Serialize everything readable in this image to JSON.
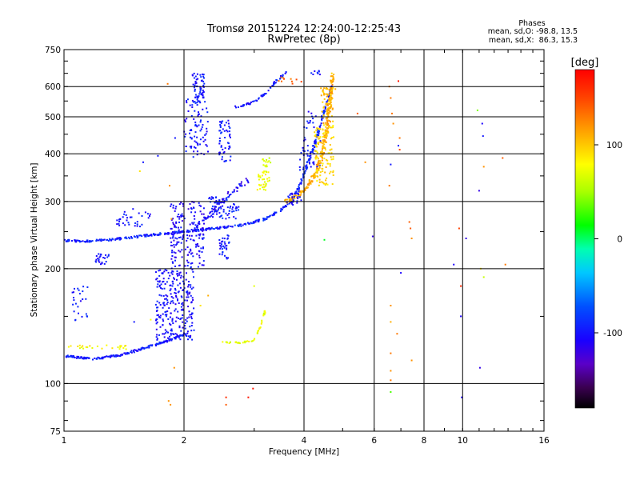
{
  "chart_data": {
    "type": "scatter",
    "title": "Tromsø 20151224 12:24:00-12:25:43",
    "subtitle": "RwPretec (8p)",
    "xlabel": "Frequency [MHz]",
    "ylabel": "Stationary phase Virtual Height [km]",
    "x_scale": "log",
    "y_scale": "log",
    "xlim": [
      1,
      16
    ],
    "ylim": [
      75,
      750
    ],
    "x_ticks": [
      1,
      2,
      4,
      6,
      8,
      10,
      16
    ],
    "x_tick_labels": [
      "1",
      "2",
      "4",
      "6",
      "8",
      "10",
      "16"
    ],
    "y_ticks": [
      75,
      100,
      200,
      300,
      400,
      500,
      600,
      750
    ],
    "y_tick_labels": [
      "75",
      "100",
      "200",
      "300",
      "400",
      "500",
      "600",
      "750"
    ],
    "grid": true,
    "phases_box": {
      "title": "Phases",
      "line_o": "mean, sd,O: -98.8, 13.5",
      "line_x": "mean, sd,X:  86.3, 15.3"
    },
    "colorbar": {
      "label": "[deg]",
      "range": [
        -180,
        180
      ],
      "ticks": [
        100,
        0,
        -100
      ],
      "tick_labels": [
        "100",
        "0",
        "-100"
      ]
    },
    "traces": [
      {
        "kind": "curve",
        "phase": -100,
        "spread": 0.012,
        "density": 12,
        "points": [
          [
            1.0,
            118
          ],
          [
            1.2,
            116
          ],
          [
            1.4,
            119
          ],
          [
            1.6,
            124
          ],
          [
            1.8,
            129
          ],
          [
            2.0,
            134
          ]
        ]
      },
      {
        "kind": "curve",
        "phase": -95,
        "spread": 0.012,
        "density": 10,
        "points": [
          [
            1.0,
            237
          ],
          [
            1.15,
            236
          ],
          [
            1.3,
            238
          ],
          [
            1.5,
            242
          ],
          [
            1.7,
            246
          ],
          [
            2.0,
            250
          ],
          [
            2.4,
            255
          ],
          [
            2.8,
            260
          ],
          [
            3.2,
            270
          ],
          [
            3.5,
            285
          ],
          [
            3.7,
            300
          ],
          [
            3.9,
            330
          ],
          [
            4.1,
            380
          ],
          [
            4.3,
            440
          ],
          [
            4.5,
            520
          ],
          [
            4.7,
            600
          ]
        ]
      },
      {
        "kind": "curve",
        "phase": -110,
        "spread": 0.03,
        "density": 7,
        "points": [
          [
            2.1,
            250
          ],
          [
            2.3,
            275
          ],
          [
            2.5,
            300
          ],
          [
            2.7,
            325
          ],
          [
            2.9,
            340
          ]
        ]
      },
      {
        "kind": "curve",
        "phase": -100,
        "spread": 0.012,
        "density": 8,
        "points": [
          [
            2.7,
            530
          ],
          [
            2.9,
            540
          ],
          [
            3.1,
            560
          ],
          [
            3.3,
            595
          ],
          [
            3.45,
            630
          ],
          [
            3.6,
            655
          ]
        ]
      },
      {
        "kind": "curve",
        "phase": 110,
        "spread": 0.02,
        "density": 14,
        "points": [
          [
            3.6,
            300
          ],
          [
            3.85,
            310
          ],
          [
            4.1,
            330
          ],
          [
            4.3,
            360
          ],
          [
            4.45,
            400
          ],
          [
            4.55,
            450
          ],
          [
            4.62,
            520
          ],
          [
            4.68,
            580
          ],
          [
            4.72,
            650
          ]
        ]
      },
      {
        "kind": "curve",
        "phase": 75,
        "spread": 0.008,
        "density": 6,
        "points": [
          [
            2.5,
            128
          ],
          [
            2.8,
            128
          ],
          [
            3.0,
            130
          ],
          [
            3.1,
            140
          ],
          [
            3.2,
            155
          ]
        ]
      },
      {
        "kind": "cloud",
        "phase": -105,
        "count": 260,
        "x": [
          1.7,
          2.12
        ],
        "y": [
          130,
          200
        ]
      },
      {
        "kind": "cloud",
        "phase": -108,
        "count": 180,
        "x": [
          1.85,
          2.25
        ],
        "y": [
          200,
          300
        ]
      },
      {
        "kind": "cloud",
        "phase": -102,
        "count": 90,
        "x": [
          2.0,
          2.3
        ],
        "y": [
          390,
          560
        ]
      },
      {
        "kind": "cloud",
        "phase": -100,
        "count": 55,
        "x": [
          2.45,
          2.62
        ],
        "y": [
          380,
          490
        ]
      },
      {
        "kind": "cloud",
        "phase": -100,
        "count": 60,
        "x": [
          2.1,
          2.25
        ],
        "y": [
          560,
          650
        ]
      },
      {
        "kind": "cloud",
        "phase": -98,
        "count": 70,
        "x": [
          2.3,
          2.75
        ],
        "y": [
          270,
          310
        ]
      },
      {
        "kind": "cloud",
        "phase": -100,
        "count": 35,
        "x": [
          2.44,
          2.6
        ],
        "y": [
          210,
          245
        ]
      },
      {
        "kind": "cloud",
        "phase": -100,
        "count": 35,
        "x": [
          1.35,
          1.65
        ],
        "y": [
          258,
          290
        ]
      },
      {
        "kind": "cloud",
        "phase": -100,
        "count": 25,
        "x": [
          1.2,
          1.3
        ],
        "y": [
          205,
          220
        ]
      },
      {
        "kind": "cloud",
        "phase": -100,
        "count": 25,
        "x": [
          1.05,
          1.15
        ],
        "y": [
          145,
          180
        ]
      },
      {
        "kind": "cloud",
        "phase": -100,
        "count": 45,
        "x": [
          3.9,
          4.4
        ],
        "y": [
          360,
          520
        ]
      },
      {
        "kind": "cloud",
        "phase": -105,
        "count": 25,
        "x": [
          3.6,
          3.95
        ],
        "y": [
          290,
          320
        ]
      },
      {
        "kind": "cloud",
        "phase": 95,
        "count": 110,
        "x": [
          4.25,
          4.75
        ],
        "y": [
          330,
          480
        ]
      },
      {
        "kind": "cloud",
        "phase": 105,
        "count": 55,
        "x": [
          4.4,
          4.8
        ],
        "y": [
          480,
          600
        ]
      },
      {
        "kind": "cloud",
        "phase": 75,
        "count": 35,
        "x": [
          3.05,
          3.28
        ],
        "y": [
          320,
          360
        ]
      },
      {
        "kind": "cloud",
        "phase": 60,
        "count": 14,
        "x": [
          3.15,
          3.3
        ],
        "y": [
          370,
          390
        ]
      },
      {
        "kind": "cloud",
        "phase": 80,
        "count": 25,
        "x": [
          1.0,
          1.45
        ],
        "y": [
          123,
          126
        ]
      },
      {
        "kind": "cloud",
        "phase": 140,
        "count": 10,
        "x": [
          3.4,
          3.95
        ],
        "y": [
          610,
          640
        ]
      },
      {
        "kind": "cloud",
        "phase": -100,
        "count": 8,
        "x": [
          4.1,
          4.4
        ],
        "y": [
          640,
          660
        ]
      }
    ],
    "sparse_points": [
      [
        1.82,
        610,
        130
      ],
      [
        1.9,
        440,
        -100
      ],
      [
        1.55,
        360,
        90
      ],
      [
        1.58,
        380,
        -100
      ],
      [
        1.72,
        395,
        -100
      ],
      [
        1.84,
        330,
        120
      ],
      [
        1.86,
        270,
        110
      ],
      [
        2.2,
        160,
        90
      ],
      [
        2.3,
        170,
        110
      ],
      [
        1.89,
        110,
        120
      ],
      [
        1.83,
        90,
        120
      ],
      [
        1.85,
        88,
        120
      ],
      [
        2.55,
        92,
        160
      ],
      [
        2.9,
        92,
        170
      ],
      [
        2.98,
        97,
        170
      ],
      [
        2.55,
        88,
        140
      ],
      [
        1.65,
        147,
        80
      ],
      [
        1.5,
        145,
        -100
      ],
      [
        3.0,
        180,
        70
      ],
      [
        4.5,
        238,
        10
      ],
      [
        5.45,
        510,
        140
      ],
      [
        5.7,
        380,
        120
      ],
      [
        5.95,
        243,
        -120
      ],
      [
        6.55,
        600,
        130
      ],
      [
        6.6,
        560,
        130
      ],
      [
        6.65,
        510,
        130
      ],
      [
        6.7,
        480,
        120
      ],
      [
        6.6,
        375,
        -100
      ],
      [
        6.55,
        330,
        130
      ],
      [
        6.9,
        420,
        -100
      ],
      [
        6.95,
        440,
        130
      ],
      [
        6.9,
        620,
        170
      ],
      [
        6.95,
        410,
        150
      ],
      [
        7.0,
        195,
        -110
      ],
      [
        6.6,
        160,
        120
      ],
      [
        6.6,
        145,
        110
      ],
      [
        6.6,
        120,
        130
      ],
      [
        6.6,
        108,
        120
      ],
      [
        6.6,
        102,
        130
      ],
      [
        6.6,
        95,
        30
      ],
      [
        7.35,
        265,
        140
      ],
      [
        7.4,
        255,
        140
      ],
      [
        7.45,
        240,
        120
      ],
      [
        7.45,
        115,
        120
      ],
      [
        6.85,
        135,
        130
      ],
      [
        9.5,
        205,
        -110
      ],
      [
        9.9,
        180,
        160
      ],
      [
        9.8,
        255,
        150
      ],
      [
        9.9,
        150,
        -110
      ],
      [
        9.95,
        92,
        -110
      ],
      [
        10.2,
        240,
        -120
      ],
      [
        10.9,
        520,
        40
      ],
      [
        11.2,
        480,
        -110
      ],
      [
        11.25,
        445,
        -100
      ],
      [
        11.3,
        370,
        120
      ],
      [
        11.0,
        320,
        -120
      ],
      [
        11.1,
        200,
        90
      ],
      [
        11.3,
        190,
        60
      ],
      [
        12.6,
        390,
        140
      ],
      [
        12.8,
        205,
        130
      ],
      [
        11.05,
        110,
        -120
      ]
    ]
  }
}
